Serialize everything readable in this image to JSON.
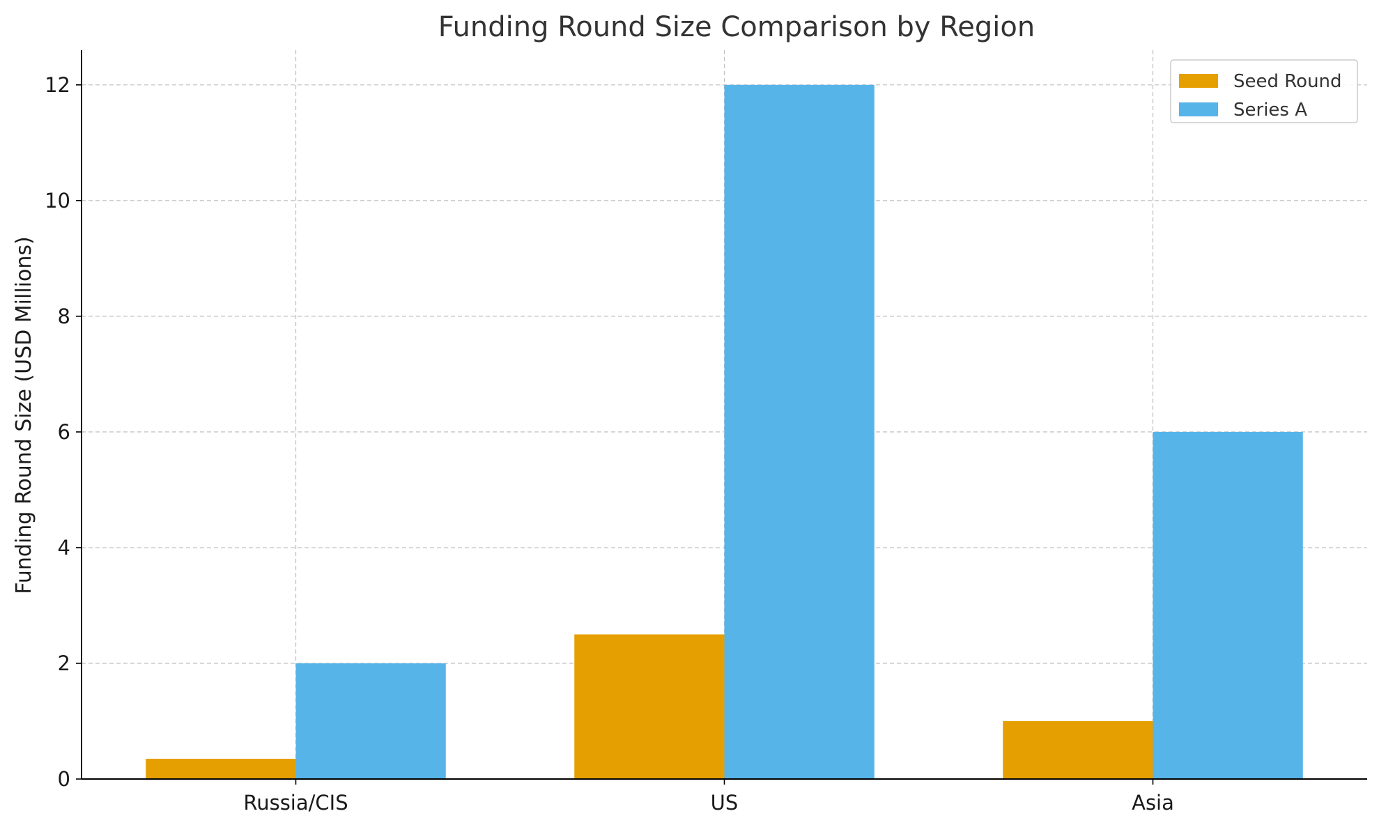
{
  "chart_data": {
    "type": "bar",
    "title": "Funding Round Size Comparison by Region",
    "xlabel": "",
    "ylabel": "Funding Round Size (USD Millions)",
    "categories": [
      "Russia/CIS",
      "US",
      "Asia"
    ],
    "series": [
      {
        "name": "Seed Round",
        "values": [
          0.35,
          2.5,
          1.0
        ],
        "color": "#E69F00"
      },
      {
        "name": "Series A",
        "values": [
          2.0,
          12.0,
          6.0
        ],
        "color": "#56B4E9"
      }
    ],
    "ylim": [
      0,
      12.6
    ],
    "yticks": [
      0,
      2,
      4,
      6,
      8,
      10,
      12
    ],
    "grid": true,
    "legend_position": "top-right"
  }
}
